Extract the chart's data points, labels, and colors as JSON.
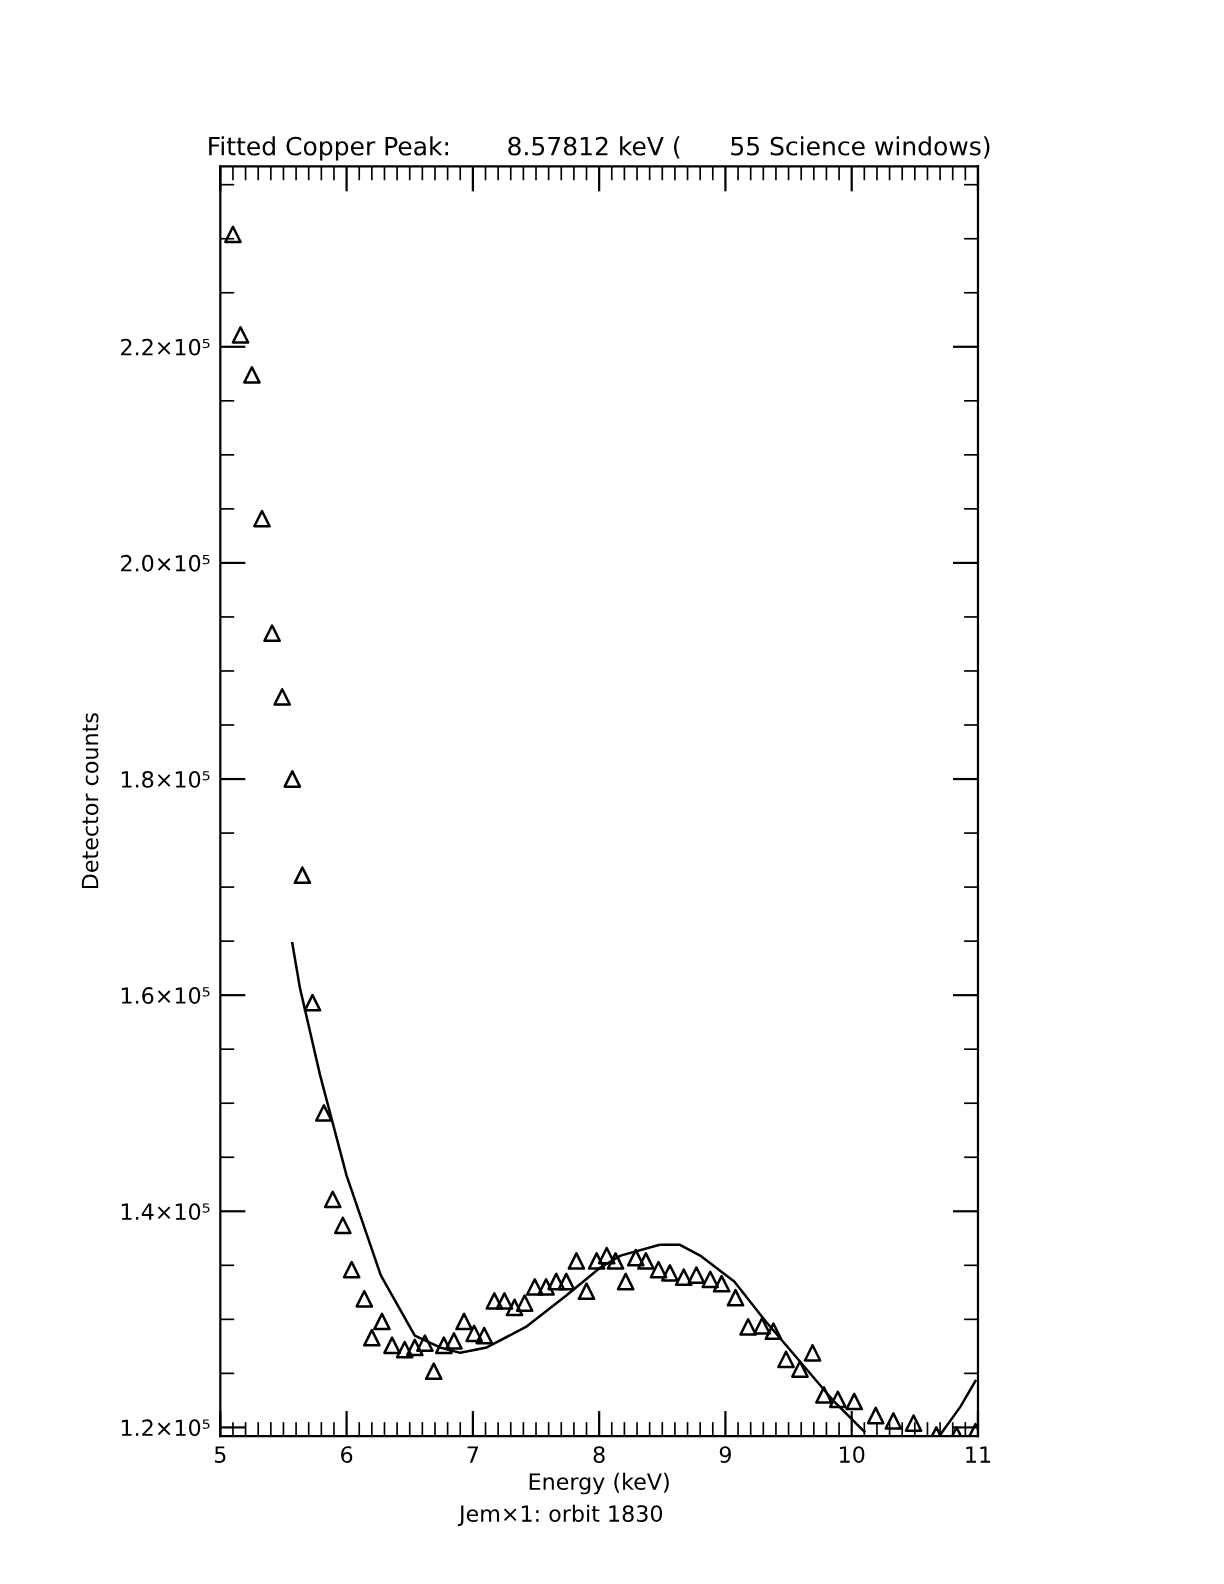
{
  "chart_data": {
    "type": "scatter",
    "title": "Fitted Copper Peak:       8.57812 keV (      55 Science windows)",
    "xlabel": "Energy (keV)",
    "ylabel": "Detector counts",
    "annotations": [
      "Jem×1: orbit 1830"
    ],
    "xlim": [
      5,
      11
    ],
    "xticks": [
      5,
      6,
      7,
      8,
      9,
      10,
      11
    ],
    "ylim": [
      119200,
      236700
    ],
    "yticks": [
      {
        "value": 120000,
        "label": "1.2×10⁵"
      },
      {
        "value": 140000,
        "label": "1.4×10⁵"
      },
      {
        "value": 160000,
        "label": "1.6×10⁵"
      },
      {
        "value": 180000,
        "label": "1.8×10⁵"
      },
      {
        "value": 200000,
        "label": "2.0×10⁵"
      },
      {
        "value": 220000,
        "label": "2.2×10⁵"
      }
    ],
    "grid": false,
    "legend": false,
    "series": [
      {
        "marker": "triangle",
        "color": "#000000",
        "x": [
          5.1,
          5.16,
          5.25,
          5.33,
          5.41,
          5.49,
          5.57,
          5.65,
          5.73,
          5.82,
          5.89,
          5.97,
          6.04,
          6.14,
          6.2,
          6.28,
          6.36,
          6.46,
          6.54,
          6.62,
          6.69,
          6.77,
          6.85,
          6.93,
          7.01,
          7.09,
          7.17,
          7.25,
          7.33,
          7.41,
          7.49,
          7.58,
          7.66,
          7.74,
          7.82,
          7.9,
          7.98,
          8.06,
          8.13,
          8.21,
          8.29,
          8.37,
          8.47,
          8.56,
          8.67,
          8.77,
          8.88,
          8.97,
          9.08,
          9.18,
          9.29,
          9.38,
          9.48,
          9.59,
          9.69,
          9.78,
          9.89,
          10.02,
          10.19,
          10.33,
          10.49,
          10.67,
          10.83,
          10.98
        ],
        "values": [
          230400,
          221100,
          217400,
          204100,
          193500,
          187600,
          180000,
          171100,
          159300,
          149100,
          141100,
          138700,
          134600,
          131900,
          128300,
          129800,
          127600,
          127200,
          127400,
          127800,
          125200,
          127600,
          128000,
          129800,
          128700,
          128500,
          131700,
          131700,
          131100,
          131500,
          133000,
          133000,
          133500,
          133500,
          135400,
          132600,
          135400,
          135900,
          135400,
          133500,
          135700,
          135400,
          134600,
          134300,
          133900,
          134100,
          133700,
          133300,
          132000,
          129300,
          129400,
          128900,
          126300,
          125400,
          126900,
          123000,
          122600,
          122400,
          121100,
          120600,
          120400,
          119300,
          119300,
          119600
        ]
      },
      {
        "type": "line",
        "marker": "none",
        "line_style": "solid",
        "color": "#000000",
        "x": [
          5.57,
          5.63,
          5.79,
          6.0,
          6.27,
          6.54,
          6.74,
          6.9,
          7.11,
          7.42,
          7.74,
          8.01,
          8.17,
          8.48,
          8.64,
          8.8,
          9.07,
          9.32,
          9.59,
          9.86,
          10.1,
          10.4,
          10.7,
          10.86,
          10.98
        ],
        "values": [
          164800,
          160700,
          152600,
          143300,
          134100,
          128500,
          127400,
          126900,
          127400,
          129300,
          132200,
          134800,
          135900,
          136900,
          136900,
          135900,
          133500,
          129800,
          126100,
          122400,
          119600,
          null,
          119300,
          121900,
          124300
        ]
      }
    ]
  }
}
